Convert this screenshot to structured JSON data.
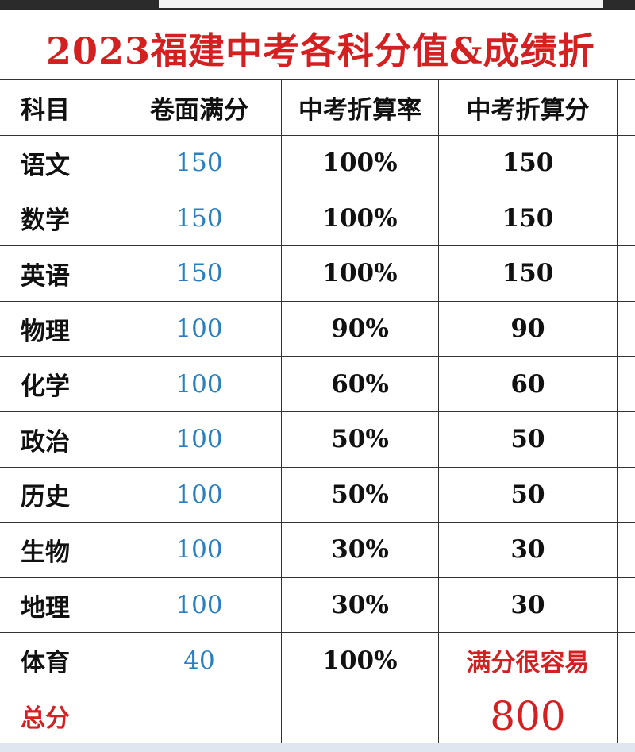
{
  "header": {
    "title": "2023福建中考各科分值&成绩折"
  },
  "table": {
    "columns": [
      "科目",
      "卷面满分",
      "中考折算率",
      "中考折算分"
    ],
    "rows": [
      [
        "语文",
        "150",
        "100%",
        "150"
      ],
      [
        "数学",
        "150",
        "100%",
        "150"
      ],
      [
        "英语",
        "150",
        "100%",
        "150"
      ],
      [
        "物理",
        "100",
        "90%",
        "90"
      ],
      [
        "化学",
        "100",
        "60%",
        "60"
      ],
      [
        "政治",
        "100",
        "50%",
        "50"
      ],
      [
        "历史",
        "100",
        "50%",
        "50"
      ],
      [
        "生物",
        "100",
        "30%",
        "30"
      ],
      [
        "地理",
        "100",
        "30%",
        "30"
      ],
      [
        "体育",
        "40",
        "100%",
        "满分很容易"
      ]
    ],
    "total": {
      "label": "总分",
      "value": "800"
    }
  }
}
